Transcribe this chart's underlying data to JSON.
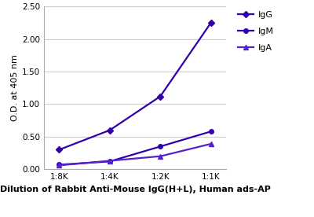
{
  "x_labels": [
    "1:8K",
    "1:4K",
    "1:2K",
    "1:1K"
  ],
  "x_values": [
    0,
    1,
    2,
    3
  ],
  "series": [
    {
      "label": "IgG",
      "values": [
        0.3,
        0.6,
        1.12,
        2.25
      ],
      "color": "#3300aa",
      "marker": "D",
      "markersize": 4,
      "linewidth": 1.6
    },
    {
      "label": "IgM",
      "values": [
        0.07,
        0.12,
        0.35,
        0.58
      ],
      "color": "#3300aa",
      "marker": "o",
      "markersize": 4,
      "linewidth": 1.6
    },
    {
      "label": "IgA",
      "values": [
        0.06,
        0.13,
        0.2,
        0.39
      ],
      "color": "#5522cc",
      "marker": "^",
      "markersize": 4,
      "linewidth": 1.6
    }
  ],
  "ylabel": "O.D. at 405 nm",
  "xlabel": "Dilution of Rabbit Anti-Mouse IgG(H+L), Human ads-AP",
  "ylim": [
    0.0,
    2.5
  ],
  "yticks": [
    0.0,
    0.5,
    1.0,
    1.5,
    2.0,
    2.5
  ],
  "grid_color": "#cccccc",
  "background_color": "#ffffff",
  "ylabel_fontsize": 8,
  "xlabel_fontsize": 8,
  "tick_fontsize": 7.5,
  "legend_fontsize": 8
}
